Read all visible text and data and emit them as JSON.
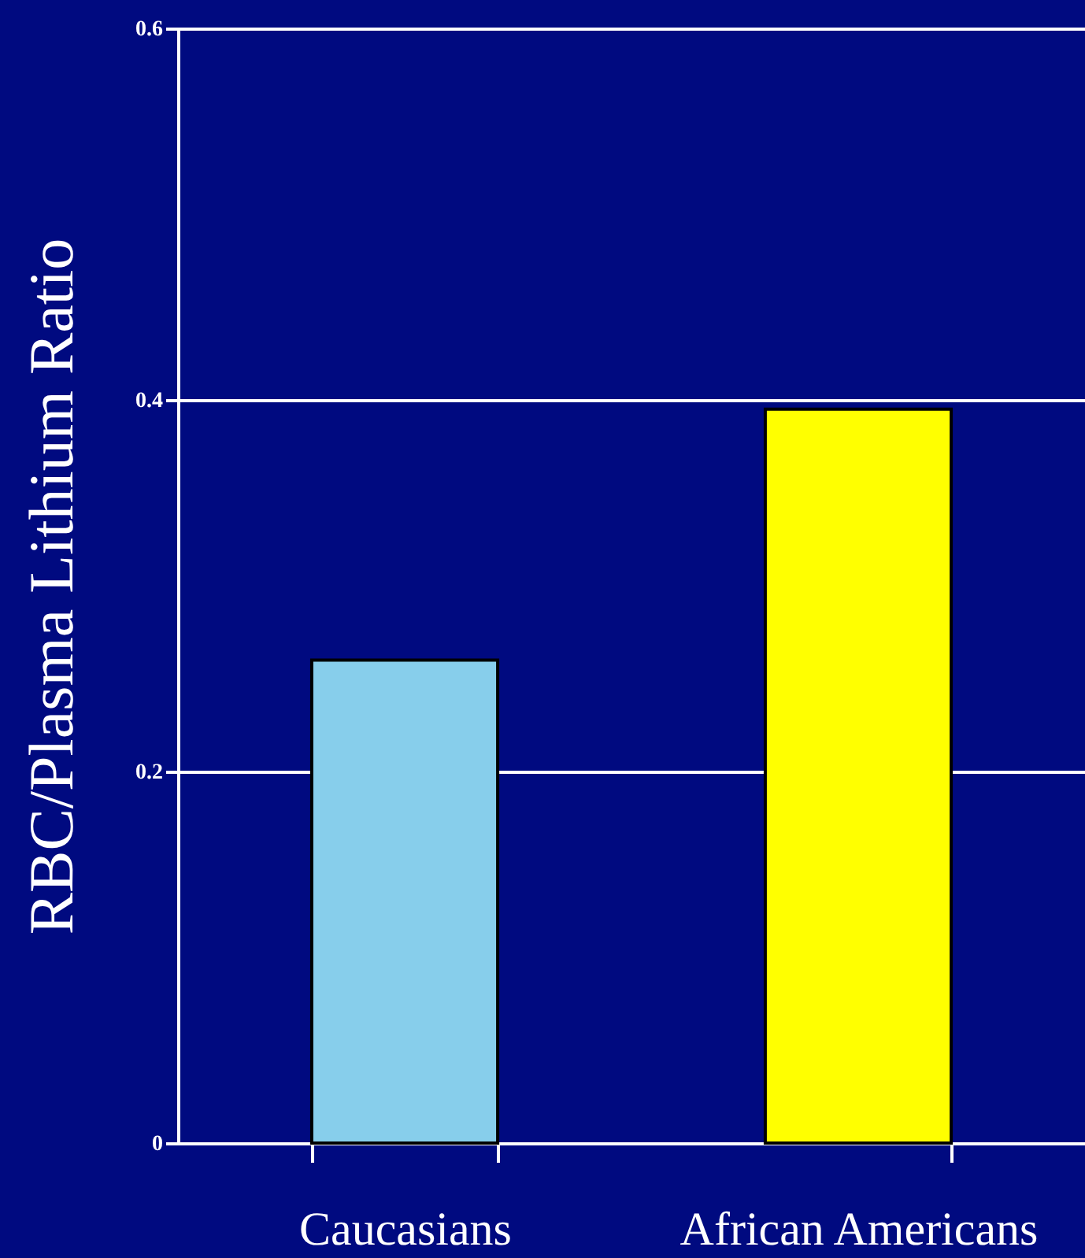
{
  "chart_data": {
    "type": "bar",
    "ylabel": "RBC/Plasma Lithium Ratio",
    "categories": [
      "Caucasians",
      "African Americans"
    ],
    "values": [
      0.26,
      0.395
    ],
    "colors": [
      "#87ceeb",
      "#ffff00"
    ],
    "ylim": [
      0,
      0.6
    ],
    "yticks": [
      0,
      0.2,
      0.4,
      0.6
    ],
    "grid": "y"
  }
}
